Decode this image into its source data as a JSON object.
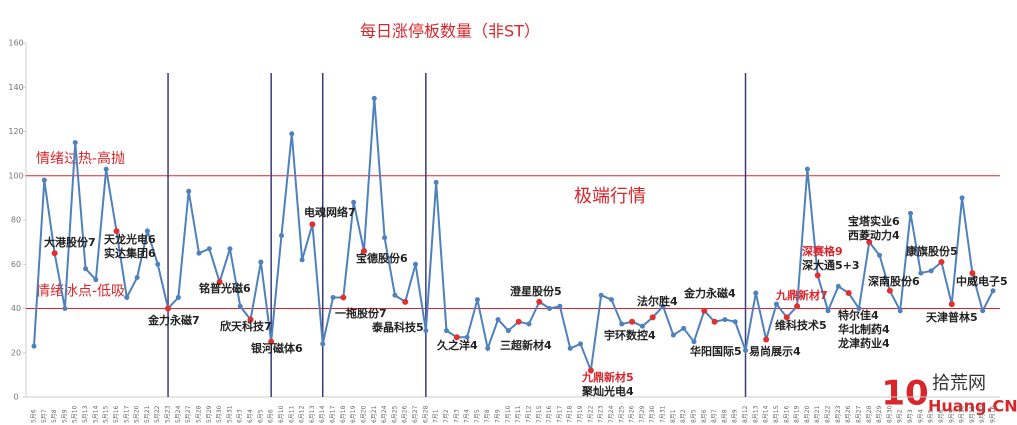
{
  "chart_data": {
    "type": "line",
    "title": "每日涨停板数量（非ST）",
    "subtitle": "极端行情",
    "categories": [
      "5月6",
      "5月7",
      "5月8",
      "5月9",
      "5月10",
      "5月13",
      "5月14",
      "5月15",
      "5月16",
      "5月17",
      "5月20",
      "5月21",
      "5月22",
      "5月23",
      "5月24",
      "5月27",
      "5月28",
      "5月29",
      "5月30",
      "5月31",
      "6月3",
      "6月4",
      "6月5",
      "6月6",
      "6月10",
      "6月11",
      "6月12",
      "6月13",
      "6月14",
      "6月17",
      "6月18",
      "6月19",
      "6月20",
      "6月21",
      "6月24",
      "6月25",
      "6月26",
      "6月27",
      "6月28",
      "7月1",
      "7月2",
      "7月3",
      "7月4",
      "7月5",
      "7月8",
      "7月9",
      "7月10",
      "7月11",
      "7月12",
      "7月15",
      "7月16",
      "7月17",
      "7月18",
      "7月19",
      "7月22",
      "7月23",
      "7月24",
      "7月25",
      "7月26",
      "7月29",
      "7月30",
      "7月31",
      "8月1",
      "8月2",
      "8月5",
      "8月6",
      "8月7",
      "8月8",
      "8月9",
      "8月12",
      "8月13",
      "8月14",
      "8月15",
      "8月16",
      "8月19",
      "8月20",
      "8月21",
      "8月22",
      "8月23",
      "8月26",
      "8月27",
      "8月28",
      "8月29",
      "8月30",
      "9月2",
      "9月3",
      "9月4",
      "9月5",
      "9月6",
      "9月9",
      "9月10",
      "9月11",
      "9月12",
      "9月16"
    ],
    "series": [
      {
        "name": "涨停板数量",
        "color": "#4f81bd",
        "values": [
          23,
          98,
          65,
          40,
          115,
          58,
          53,
          103,
          75,
          45,
          54,
          75,
          60,
          40,
          45,
          93,
          65,
          67,
          52,
          67,
          41,
          35,
          61,
          25,
          73,
          119,
          62,
          78,
          24,
          45,
          45,
          88,
          66,
          135,
          72,
          46,
          43,
          60,
          30,
          97,
          30,
          27,
          27,
          44,
          22,
          35,
          30,
          34,
          33,
          43,
          40,
          41,
          22,
          24,
          12,
          46,
          44,
          33,
          34,
          32,
          36,
          41,
          28,
          31,
          25,
          39,
          34,
          35,
          34,
          21,
          47,
          26,
          42,
          36,
          41,
          103,
          55,
          39,
          50,
          47,
          40,
          70,
          64,
          48,
          39,
          83,
          56,
          57,
          61,
          42,
          90,
          56,
          39,
          48
        ]
      }
    ],
    "highlight_color": "#e03030",
    "ylim": [
      0,
      160
    ],
    "yticks": [
      0,
      20,
      40,
      60,
      80,
      100,
      120,
      140,
      160
    ],
    "hlines": [
      {
        "value": 100,
        "label": "情绪过热-高抛",
        "color": "#d9262b"
      },
      {
        "value": 40,
        "label": "情绪冰点-低吸",
        "color": "#d9262b"
      }
    ],
    "vlines": {
      "color": "#3b3b7a",
      "x": [
        "5月23",
        "6月6",
        "6月14",
        "6月28",
        "8月12"
      ]
    },
    "annotations": [
      {
        "text": "大港股份7",
        "x": "5月8",
        "color": "#222"
      },
      {
        "text": "天龙光电6",
        "x": "5月16",
        "color": "#222"
      },
      {
        "text": "实达集团6",
        "x": "5月16",
        "color": "#222"
      },
      {
        "text": "金力永磁7",
        "x": "5月23",
        "color": "#222"
      },
      {
        "text": "铭普光磁6",
        "x": "5月30",
        "color": "#222"
      },
      {
        "text": "欣天科技7",
        "x": "6月4",
        "color": "#222"
      },
      {
        "text": "银河磁体6",
        "x": "6月6",
        "color": "#222"
      },
      {
        "text": "电魂网络7",
        "x": "6月13",
        "color": "#222"
      },
      {
        "text": "一拖股份7",
        "x": "6月18",
        "color": "#222"
      },
      {
        "text": "宝德股份6",
        "x": "6月20",
        "color": "#222"
      },
      {
        "text": "泰晶科技5",
        "x": "6月26",
        "color": "#222"
      },
      {
        "text": "久之洋4",
        "x": "7月3",
        "color": "#222"
      },
      {
        "text": "澄星股份5",
        "x": "7月15",
        "color": "#222"
      },
      {
        "text": "三超新材4",
        "x": "7月11",
        "color": "#222"
      },
      {
        "text": "九鼎新材5",
        "x": "7月22",
        "color": "#d9262b"
      },
      {
        "text": "聚灿光电4",
        "x": "7月22",
        "color": "#222"
      },
      {
        "text": "宇环数控4",
        "x": "7月26",
        "color": "#222"
      },
      {
        "text": "法尔胜4",
        "x": "7月30",
        "color": "#222"
      },
      {
        "text": "金力永磁4",
        "x": "8月6",
        "color": "#222"
      },
      {
        "text": "华阳国际5",
        "x": "8月7",
        "color": "#222"
      },
      {
        "text": "易尚展示4",
        "x": "8月14",
        "color": "#222"
      },
      {
        "text": "维科技术5",
        "x": "8月16",
        "color": "#222"
      },
      {
        "text": "九鼎新材7",
        "x": "8月19",
        "color": "#d9262b"
      },
      {
        "text": "深赛格9",
        "x": "8月21",
        "color": "#d9262b"
      },
      {
        "text": "深大通5+3",
        "x": "8月21",
        "color": "#222"
      },
      {
        "text": "特尔佳4",
        "x": "8月26",
        "color": "#222"
      },
      {
        "text": "华北制药4",
        "x": "8月26",
        "color": "#222"
      },
      {
        "text": "龙津药业4",
        "x": "8月26",
        "color": "#222"
      },
      {
        "text": "宝塔实业6",
        "x": "8月28",
        "color": "#222"
      },
      {
        "text": "西菱动力4",
        "x": "8月28",
        "color": "#222"
      },
      {
        "text": "深南股份6",
        "x": "8月30",
        "color": "#222"
      },
      {
        "text": "康旗股份5",
        "x": "9月6",
        "color": "#222"
      },
      {
        "text": "天津普林5",
        "x": "9月9",
        "color": "#222"
      },
      {
        "text": "中威电子5",
        "x": "9月11",
        "color": "#222"
      }
    ],
    "grid": false
  },
  "watermark": {
    "logo": "10",
    "name": "拾荒网",
    "url": "Huang.CN"
  }
}
